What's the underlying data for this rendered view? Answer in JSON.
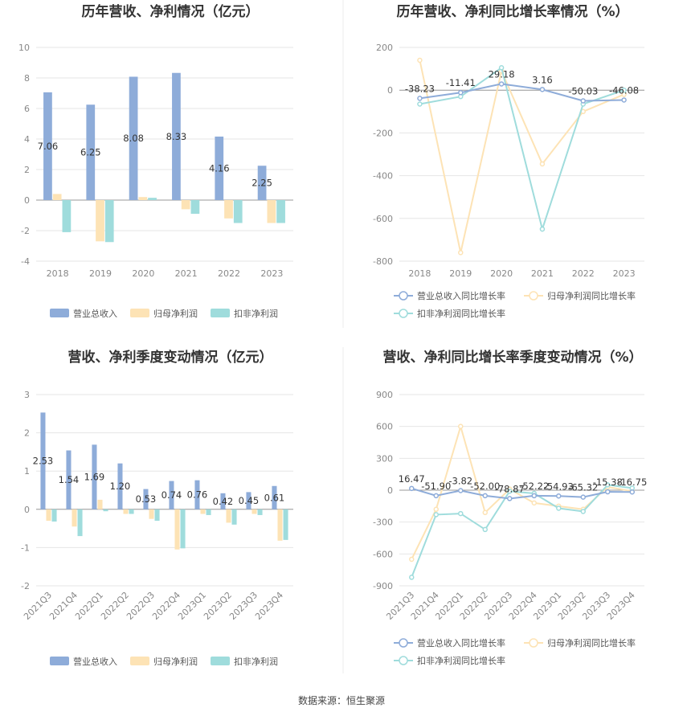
{
  "colors": {
    "revenue": "#8eacd9",
    "net_profit": "#fde3b5",
    "deducted_profit": "#9fdcdc",
    "grid": "#e6e6e6",
    "axis": "#cfcfcf"
  },
  "source": "数据来源：恒生聚源",
  "chart_data": [
    {
      "type": "bar",
      "title": "历年营收、净利情况（亿元）",
      "categories": [
        "2018",
        "2019",
        "2020",
        "2021",
        "2022",
        "2023"
      ],
      "series": [
        {
          "name": "营业总收入",
          "values": [
            7.06,
            6.25,
            8.08,
            8.33,
            4.16,
            2.25
          ],
          "labels": [
            "7.06",
            "6.25",
            "8.08",
            "8.33",
            "4.16",
            "2.25"
          ]
        },
        {
          "name": "归母净利润",
          "values": [
            0.4,
            -2.7,
            0.2,
            -0.6,
            -1.2,
            -1.5
          ]
        },
        {
          "name": "扣非净利润",
          "values": [
            -2.1,
            -2.75,
            0.15,
            -0.9,
            -1.5,
            -1.5
          ]
        }
      ],
      "ylim": [
        -4,
        10
      ],
      "yticks": [
        "10",
        "8",
        "6",
        "4",
        "2",
        "0",
        "-2",
        "-4"
      ],
      "legend_position": "bottom"
    },
    {
      "type": "line",
      "title": "历年营收、净利同比增长率情况（%）",
      "categories": [
        "2018",
        "2019",
        "2020",
        "2021",
        "2022",
        "2023"
      ],
      "series": [
        {
          "name": "营业总收入同比增长率",
          "values": [
            -38.23,
            -11.41,
            29.18,
            3.16,
            -50.03,
            -46.08
          ],
          "labels": [
            "-38.23",
            "-11.41",
            "29.18",
            "3.16",
            "-50.03",
            "-46.08"
          ]
        },
        {
          "name": "归母净利润同比增长率",
          "values": [
            140,
            -760,
            90,
            -345,
            -100,
            -20
          ]
        },
        {
          "name": "扣非净利润同比增长率",
          "values": [
            -65,
            -30,
            105,
            -650,
            -65,
            0
          ]
        }
      ],
      "ylim": [
        -800,
        200
      ],
      "yticks": [
        "200",
        "0",
        "-200",
        "-400",
        "-600",
        "-800"
      ],
      "legend_position": "bottom"
    },
    {
      "type": "bar",
      "title": "营收、净利季度变动情况（亿元）",
      "categories": [
        "2021Q3",
        "2021Q4",
        "2022Q1",
        "2022Q2",
        "2022Q3",
        "2022Q4",
        "2023Q1",
        "2023Q2",
        "2023Q3",
        "2023Q4"
      ],
      "series": [
        {
          "name": "营业总收入",
          "values": [
            2.53,
            1.54,
            1.69,
            1.2,
            0.53,
            0.74,
            0.76,
            0.42,
            0.45,
            0.61
          ],
          "labels": [
            "2.53",
            "1.54",
            "1.69",
            "1.20",
            "0.53",
            "0.74",
            "0.76",
            "0.42",
            "0.45",
            "0.61"
          ]
        },
        {
          "name": "归母净利润",
          "values": [
            -0.3,
            -0.45,
            0.25,
            -0.12,
            -0.25,
            -1.05,
            -0.12,
            -0.35,
            -0.12,
            -0.82
          ]
        },
        {
          "name": "扣非净利润",
          "values": [
            -0.32,
            -0.7,
            -0.05,
            -0.12,
            -0.3,
            -1.02,
            -0.15,
            -0.4,
            -0.15,
            -0.8
          ]
        }
      ],
      "ylim": [
        -2,
        3
      ],
      "yticks": [
        "3",
        "2",
        "1",
        "0",
        "-1",
        "-2"
      ],
      "legend_position": "bottom"
    },
    {
      "type": "line",
      "title": "营收、净利同比增长率季度变动情况（%）",
      "categories": [
        "2021Q3",
        "2021Q4",
        "2022Q1",
        "2022Q2",
        "2022Q3",
        "2022Q4",
        "2023Q1",
        "2023Q2",
        "2023Q3",
        "2023Q4"
      ],
      "series": [
        {
          "name": "营业总收入同比增长率",
          "values": [
            16.47,
            -51.9,
            -3.82,
            -52.0,
            -78.87,
            -52.22,
            -54.93,
            -65.32,
            -15.38,
            -16.75
          ],
          "labels": [
            "16.47",
            "-51.90",
            "-3.82",
            "-52.00",
            "-78.87",
            "-52.22",
            "-54.93",
            "-65.32",
            "-15.38",
            "-16.75"
          ]
        },
        {
          "name": "归母净利润同比增长率",
          "values": [
            -650,
            -180,
            600,
            -210,
            10,
            -120,
            -150,
            -180,
            30,
            -10
          ]
        },
        {
          "name": "扣非净利润同比增长率",
          "values": [
            -820,
            -230,
            -220,
            -370,
            -10,
            -30,
            -170,
            -200,
            50,
            20
          ]
        }
      ],
      "ylim": [
        -900,
        900
      ],
      "yticks": [
        "900",
        "600",
        "300",
        "0",
        "-300",
        "-600",
        "-900"
      ],
      "legend_position": "bottom"
    }
  ]
}
